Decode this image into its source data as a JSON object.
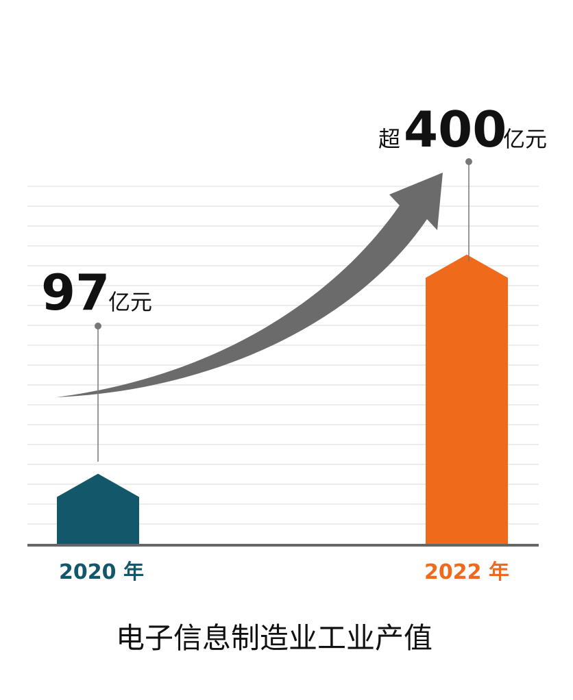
{
  "chart_data": {
    "type": "bar",
    "title": "电子信息制造业工业产值",
    "categories": [
      "2020 年",
      "2022 年"
    ],
    "values": [
      97,
      400
    ],
    "ylim": [
      0,
      430
    ],
    "grid": true,
    "annotations": [
      {
        "prefix": "",
        "value": "97",
        "unit": "亿元"
      },
      {
        "prefix": "超",
        "value": "400",
        "unit": "亿元"
      }
    ],
    "colors": [
      "#12586a",
      "#f06a1b"
    ],
    "arrow_color": "#6b6b6b"
  }
}
